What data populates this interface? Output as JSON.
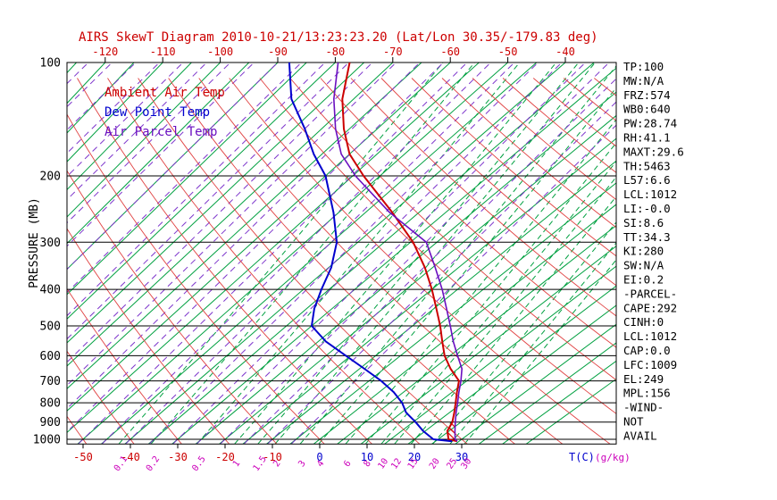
{
  "title": {
    "text": "AIRS SkewT Diagram 2010-10-21/13:23:23.20 (Lat/Lon 30.35/-179.83 deg)"
  },
  "side_panel": {
    "items": [
      "TP:100",
      "MW:N/A",
      "FRZ:574",
      "WB0:640",
      "PW:28.74",
      "RH:41.1",
      "MAXT:29.6",
      "TH:5463",
      "L57:6.6",
      "LCL:1012",
      "LI:-0.0",
      "SI:8.6",
      "TT:34.3",
      "KI:280",
      "SW:N/A",
      "EI:0.2",
      "-PARCEL-",
      "CAPE:292",
      "CINH:0",
      "LCL:1012",
      "CAP:0.0",
      "LFC:1009",
      "EL:249",
      "MPL:156",
      "-WIND-",
      "NOT",
      "AVAIL"
    ]
  },
  "chart_data": {
    "type": "line",
    "title": "AIRS SkewT Diagram 2010-10-21/13:23:23.20 (Lat/Lon 30.35/-179.83 deg)",
    "x_axis": {
      "label": "T(C)",
      "units_label": "(g/kg)",
      "top_tick_labels": [
        -120,
        -110,
        -100,
        -90,
        -80,
        -70,
        -60,
        -50,
        -40
      ],
      "bottom_tick_labels_red": [
        -50,
        -40,
        -30,
        -20,
        -10
      ],
      "bottom_tick_labels_blue": [
        0,
        10,
        20,
        30
      ]
    },
    "y_axis": {
      "label": "PRESSURE (MB)",
      "scale": "log",
      "tick_labels": [
        100,
        200,
        300,
        400,
        500,
        600,
        700,
        800,
        900,
        1000
      ],
      "range": [
        100,
        1030
      ]
    },
    "mixing_ratio_labels_g_per_kg": [
      0.1,
      0.2,
      0.5,
      1,
      1.5,
      2,
      3,
      4,
      6,
      8,
      10,
      12,
      15,
      20,
      25,
      30
    ],
    "pressure_levels_mb": [
      1012,
      1000,
      950,
      900,
      850,
      800,
      750,
      700,
      650,
      600,
      550,
      500,
      450,
      400,
      350,
      300,
      250,
      200,
      175,
      150,
      125,
      100
    ],
    "series": [
      {
        "name": "Ambient Air Temp",
        "color": "#cc0000",
        "temps_c": [
          29.6,
          27.2,
          24.6,
          23.2,
          21.0,
          18.6,
          16.0,
          13.4,
          8.5,
          3.9,
          -0.2,
          -4.5,
          -9.5,
          -15.0,
          -21.5,
          -29.5,
          -40.0,
          -53.0,
          -60.0,
          -66.0,
          -72.0,
          -77.5
        ]
      },
      {
        "name": "Dew Point Temp",
        "color": "#0000cd",
        "temps_c": [
          28.5,
          24.0,
          19.5,
          15.5,
          11.0,
          7.5,
          3.0,
          -2.5,
          -9.0,
          -16.0,
          -23.5,
          -30.0,
          -33.5,
          -36.5,
          -39.5,
          -44.0,
          -51.0,
          -60.0,
          -66.5,
          -73.0,
          -81.0,
          -88.0
        ]
      },
      {
        "name": "Air Parcel Temp",
        "color": "#6a0fc0",
        "temps_c": [
          29.6,
          28.6,
          26.2,
          23.8,
          21.4,
          19.0,
          16.4,
          13.8,
          10.8,
          6.5,
          2.0,
          -2.5,
          -7.5,
          -13.0,
          -19.5,
          -27.0,
          -40.5,
          -54.5,
          -61.5,
          -67.5,
          -73.5,
          -79.5
        ]
      }
    ],
    "cape_hatch_pressure_range_mb": [
      1012,
      900
    ],
    "grid": {
      "isotherm_step_c": 5,
      "dry_adiabat_step_c": 10,
      "colors": {
        "isotherm": "#00a040",
        "dry_adiabat": "#e04040",
        "mixing_ratio": "#00a040",
        "moist_adiabat": "#7d35cc",
        "frame": "#000000"
      }
    }
  }
}
